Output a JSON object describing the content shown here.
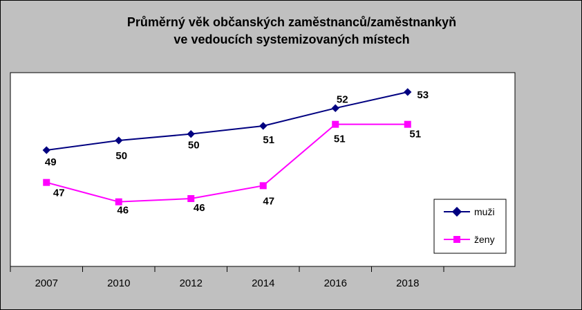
{
  "chart_data": {
    "type": "line",
    "title_lines": [
      "Průměrný věk občanských zaměstnanců/zaměstnankyň",
      "ve vedoucích systemizovaných místech"
    ],
    "categories": [
      "2007",
      "2010",
      "2012",
      "2014",
      "2016",
      "2018"
    ],
    "series": [
      {
        "name": "muži",
        "color": "#000080",
        "marker": "diamond",
        "values": [
          49.2,
          49.8,
          50.2,
          50.7,
          51.8,
          52.8
        ],
        "labels": [
          "49",
          "50",
          "50",
          "51",
          "52",
          "53"
        ]
      },
      {
        "name": "ženy",
        "color": "#ff00ff",
        "marker": "square",
        "values": [
          47.2,
          46.0,
          46.2,
          47.0,
          50.8,
          50.8
        ],
        "labels": [
          "47",
          "46",
          "46",
          "47",
          "51",
          "51"
        ]
      }
    ],
    "ylim": [
      42,
      54
    ],
    "xlabel": "",
    "ylabel": "",
    "grid": false,
    "legend_position": "bottom-right",
    "plot_background": "#ffffff",
    "chart_background": "#c0c0c0"
  }
}
